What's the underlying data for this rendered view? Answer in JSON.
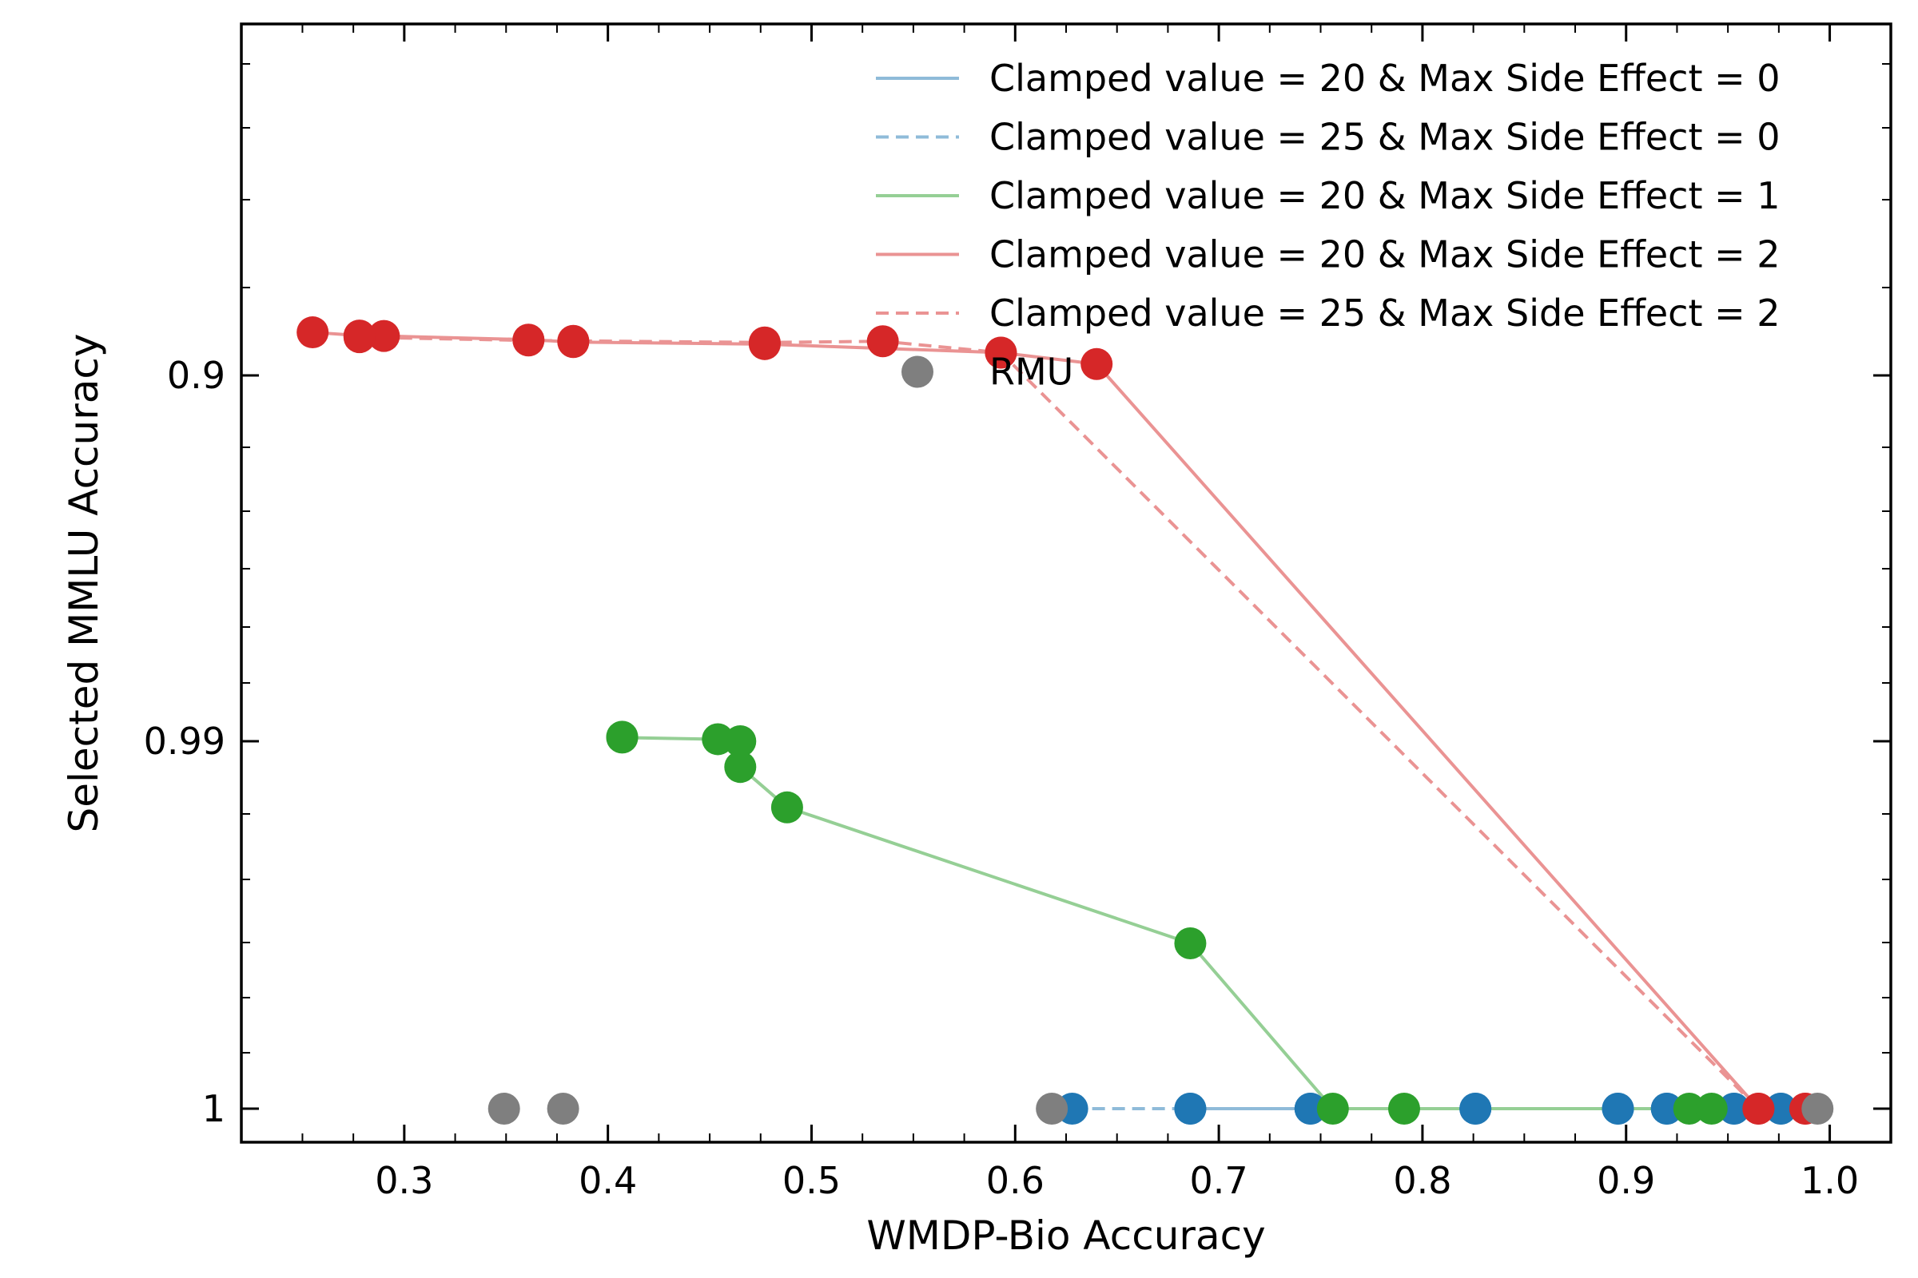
{
  "chart_data": {
    "type": "line",
    "title": "",
    "xlabel": "WMDP-Bio Accuracy",
    "ylabel": "Selected MMLU Accuracy",
    "xlim": [
      0.22,
      1.03
    ],
    "y_scale": "log(1 - y)",
    "y_ticks": [
      {
        "value": 0.9,
        "label": "0.9"
      },
      {
        "value": 0.99,
        "label": "0.99"
      },
      {
        "value": 1,
        "label": "1"
      }
    ],
    "x_ticks": [
      {
        "value": 0.3,
        "label": "0.3"
      },
      {
        "value": 0.4,
        "label": "0.4"
      },
      {
        "value": 0.5,
        "label": "0.5"
      },
      {
        "value": 0.6,
        "label": "0.6"
      },
      {
        "value": 0.7,
        "label": "0.7"
      },
      {
        "value": 0.8,
        "label": "0.8"
      },
      {
        "value": 0.9,
        "label": "0.9"
      },
      {
        "value": 1.0,
        "label": "1.0"
      }
    ],
    "grid": false,
    "legend_position": "top-right",
    "series": [
      {
        "name": "Clamped value = 20 & Max Side Effect = 0",
        "color": "#1f77b4",
        "style": "solid",
        "points": [
          [
            0.686,
            1.0
          ],
          [
            0.745,
            1.0
          ],
          [
            0.826,
            1.0
          ],
          [
            0.896,
            1.0
          ],
          [
            0.92,
            1.0
          ],
          [
            0.953,
            1.0
          ],
          [
            0.976,
            1.0
          ]
        ]
      },
      {
        "name": "Clamped value = 25 & Max Side Effect = 0",
        "color": "#1f77b4",
        "style": "dashed",
        "points": [
          [
            0.628,
            1.0
          ],
          [
            0.686,
            1.0
          ],
          [
            0.745,
            1.0
          ],
          [
            0.826,
            1.0
          ],
          [
            0.896,
            1.0
          ],
          [
            0.92,
            1.0
          ],
          [
            0.953,
            1.0
          ],
          [
            0.976,
            1.0
          ]
        ]
      },
      {
        "name": "Clamped value = 20 & Max Side Effect = 1",
        "color": "#2ca02c",
        "style": "solid",
        "points": [
          [
            0.407,
            0.9889
          ],
          [
            0.407,
            0.9891
          ],
          [
            0.454,
            0.9895
          ],
          [
            0.465,
            0.99
          ],
          [
            0.465,
            0.9907
          ],
          [
            0.488,
            0.9918
          ],
          [
            0.686,
            0.9955
          ],
          [
            0.756,
            1.0
          ],
          [
            0.791,
            1.0
          ],
          [
            0.931,
            1.0
          ],
          [
            0.942,
            1.0
          ]
        ]
      },
      {
        "name": "Clamped value = 20 & Max Side Effect = 2",
        "color": "#d62728",
        "style": "solid",
        "points": [
          [
            0.255,
            0.8894
          ],
          [
            0.278,
            0.8902
          ],
          [
            0.29,
            0.8903
          ],
          [
            0.361,
            0.8912
          ],
          [
            0.383,
            0.8918
          ],
          [
            0.477,
            0.8923
          ],
          [
            0.593,
            0.8944
          ],
          [
            0.64,
            0.8972
          ],
          [
            0.965,
            1.0
          ],
          [
            0.988,
            1.0
          ]
        ]
      },
      {
        "name": "Clamped value = 25 & Max Side Effect = 2",
        "color": "#d62728",
        "style": "dashed",
        "points": [
          [
            0.278,
            0.8906
          ],
          [
            0.361,
            0.8914
          ],
          [
            0.383,
            0.8915
          ],
          [
            0.477,
            0.8919
          ],
          [
            0.535,
            0.8916
          ],
          [
            0.593,
            0.8944
          ],
          [
            0.965,
            1.0
          ],
          [
            0.988,
            1.0
          ]
        ]
      }
    ],
    "rmu": {
      "name": "RMU",
      "color": "#7f7f7f",
      "points": [
        [
          0.349,
          1.0
        ],
        [
          0.378,
          1.0
        ],
        [
          0.618,
          1.0
        ],
        [
          0.994,
          1.0
        ]
      ]
    }
  }
}
